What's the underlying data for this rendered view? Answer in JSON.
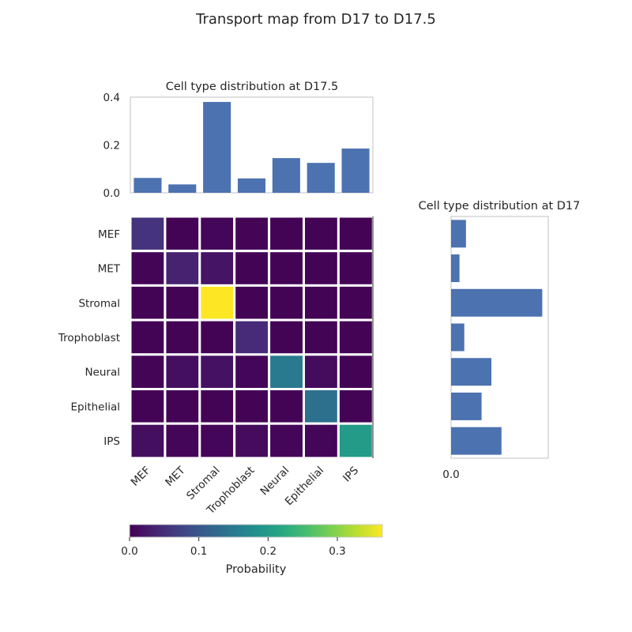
{
  "colors": {
    "bar": "#4c72b0",
    "frame": "#cccccc",
    "grid_line": "#ffffff",
    "text": "#262626"
  },
  "chart_data": [
    {
      "type": "heatmap",
      "title": "Transport map from D17 to D17.5",
      "row_labels": [
        "MEF",
        "MET",
        "Stromal",
        "Trophoblast",
        "Neural",
        "Epithelial",
        "IPS"
      ],
      "col_labels": [
        "MEF",
        "MET",
        "Stromal",
        "Trophoblast",
        "Neural",
        "Epithelial",
        "IPS"
      ],
      "values": [
        [
          0.055,
          0.003,
          0.005,
          0.004,
          0.003,
          0.003,
          0.003
        ],
        [
          0.004,
          0.035,
          0.02,
          0.003,
          0.003,
          0.003,
          0.003
        ],
        [
          0.003,
          0.003,
          0.365,
          0.003,
          0.003,
          0.003,
          0.003
        ],
        [
          0.003,
          0.003,
          0.003,
          0.045,
          0.003,
          0.003,
          0.003
        ],
        [
          0.004,
          0.015,
          0.018,
          0.005,
          0.15,
          0.012,
          0.003
        ],
        [
          0.003,
          0.003,
          0.003,
          0.003,
          0.003,
          0.135,
          0.003
        ],
        [
          0.015,
          0.005,
          0.005,
          0.012,
          0.005,
          0.005,
          0.2
        ]
      ],
      "colormap": "viridis",
      "colorbar": {
        "label": "Probability",
        "range": [
          0,
          0.365
        ],
        "ticks": [
          0.0,
          0.1,
          0.2,
          0.3
        ],
        "tick_labels": [
          "0.0",
          "0.1",
          "0.2",
          "0.3"
        ]
      }
    },
    {
      "type": "bar",
      "title": "Cell type distribution at D17.5",
      "categories": [
        "MEF",
        "MET",
        "Stromal",
        "Trophoblast",
        "Neural",
        "Epithelial",
        "IPS"
      ],
      "values": [
        0.062,
        0.035,
        0.38,
        0.06,
        0.145,
        0.125,
        0.185
      ],
      "ylim": [
        0,
        0.4
      ],
      "yticks": [
        0.0,
        0.2,
        0.4
      ],
      "ytick_labels": [
        "0.0",
        "0.2",
        "0.4"
      ]
    },
    {
      "type": "bar",
      "orientation": "horizontal",
      "title": "Cell type distribution at D17",
      "categories": [
        "MEF",
        "MET",
        "Stromal",
        "Trophoblast",
        "Neural",
        "Epithelial",
        "IPS"
      ],
      "values": [
        0.062,
        0.035,
        0.38,
        0.055,
        0.168,
        0.127,
        0.21
      ],
      "xlim": [
        0,
        0.405
      ],
      "xticks": [
        0.0
      ],
      "xtick_labels": [
        "0.0"
      ]
    }
  ]
}
